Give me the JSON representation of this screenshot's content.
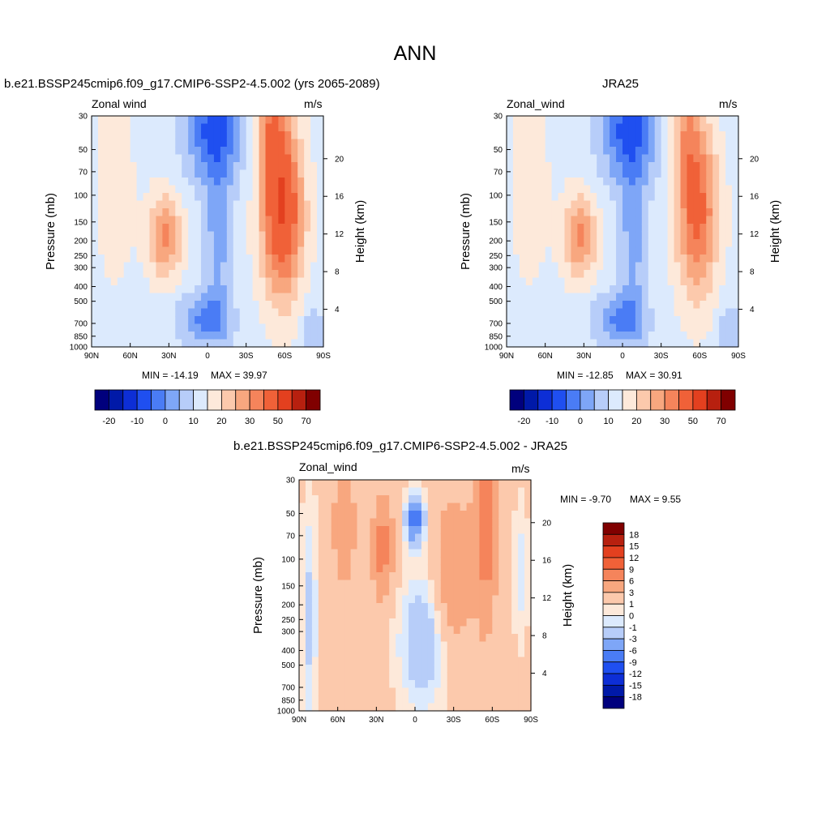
{
  "title": "ANN",
  "colors": {
    "abs_levels": [
      "#00007d",
      "#0019a8",
      "#0d2ed6",
      "#1f4ff0",
      "#4a7cf5",
      "#7ea6f7",
      "#b7cdf9",
      "#dceafd",
      "#fde9da",
      "#fcc9ac",
      "#f8a77f",
      "#f5845b",
      "#f06138",
      "#e3401f",
      "#b7200f",
      "#800000"
    ],
    "diff_levels": [
      "#00007d",
      "#0019a8",
      "#0d2ed6",
      "#1f4ff0",
      "#4a7cf5",
      "#7ea6f7",
      "#b7cdf9",
      "#dceafd",
      "#fde9da",
      "#fcc9ac",
      "#f8a77f",
      "#f5845b",
      "#f06138",
      "#e3401f",
      "#b7200f",
      "#800000"
    ]
  },
  "chart_data": [
    {
      "type": "heatmap",
      "title": "b.e21.BSSP245cmip6.f09_g17.CMIP6-SSP2-4.5.002 (yrs 2065-2089)",
      "left_label": "Zonal wind",
      "right_label": "m/s",
      "xlabel": "",
      "ylabel": "Pressure (mb)",
      "ylabel_right": "Height (km)",
      "x_ticks": [
        "90N",
        "60N",
        "30N",
        "0",
        "30S",
        "60S",
        "90S"
      ],
      "y_ticks": [
        "30",
        "50",
        "70",
        "100",
        "150",
        "200",
        "250",
        "300",
        "400",
        "500",
        "700",
        "850",
        "1000"
      ],
      "y_right_ticks": [
        "20",
        "16",
        "12",
        "8",
        "4"
      ],
      "min": "MIN = -14.19",
      "max": "MAX =  39.97",
      "colorbar_labels": [
        "-20",
        "-10",
        "0",
        "10",
        "20",
        "30",
        "50",
        "70"
      ],
      "features": [
        {
          "lat": -60,
          "p": 200,
          "val": 38
        },
        {
          "lat": 30,
          "p": 200,
          "val": 24
        },
        {
          "lat": -15,
          "p": 40,
          "val": -12
        },
        {
          "lat": 5,
          "p": 800,
          "val": -8
        }
      ]
    },
    {
      "type": "heatmap",
      "title": "JRA25",
      "left_label": "Zonal_wind",
      "right_label": "m/s",
      "xlabel": "",
      "ylabel": "Pressure (mb)",
      "ylabel_right": "Height (km)",
      "x_ticks": [
        "90N",
        "60N",
        "30N",
        "0",
        "30S",
        "60S",
        "90S"
      ],
      "y_ticks": [
        "30",
        "50",
        "70",
        "100",
        "150",
        "200",
        "250",
        "300",
        "400",
        "500",
        "700",
        "850",
        "1000"
      ],
      "y_right_ticks": [
        "20",
        "16",
        "12",
        "8",
        "4"
      ],
      "min": "MIN = -12.85",
      "max": "MAX =  30.91",
      "colorbar_labels": [
        "-20",
        "-10",
        "0",
        "10",
        "20",
        "30",
        "50",
        "70"
      ],
      "features": [
        {
          "lat": -55,
          "p": 200,
          "val": 30
        },
        {
          "lat": 30,
          "p": 200,
          "val": 24
        },
        {
          "lat": 0,
          "p": 40,
          "val": -12
        }
      ]
    },
    {
      "type": "heatmap",
      "title": "b.e21.BSSP245cmip6.f09_g17.CMIP6-SSP2-4.5.002 - JRA25",
      "left_label": "Zonal_wind",
      "right_label": "m/s",
      "xlabel": "",
      "ylabel": "Pressure (mb)",
      "ylabel_right": "Height (km)",
      "x_ticks": [
        "90N",
        "60N",
        "30N",
        "0",
        "30S",
        "60S",
        "90S"
      ],
      "y_ticks": [
        "30",
        "50",
        "70",
        "100",
        "150",
        "200",
        "250",
        "300",
        "400",
        "500",
        "700",
        "850",
        "1000"
      ],
      "y_right_ticks": [
        "20",
        "16",
        "12",
        "8",
        "4"
      ],
      "min": "MIN =  -9.70",
      "max": "MAX =   9.55",
      "colorbar_labels": [
        "18",
        "15",
        "12",
        "9",
        "6",
        "3",
        "1",
        "0",
        "-1",
        "-3",
        "-6",
        "-9",
        "-12",
        "-15",
        "-18"
      ],
      "features": [
        {
          "lat": -55,
          "p": 30,
          "val": 9.55
        },
        {
          "lat": 0,
          "p": 60,
          "val": -9.7
        },
        {
          "lat": 25,
          "p": 100,
          "val": 7
        }
      ]
    }
  ]
}
